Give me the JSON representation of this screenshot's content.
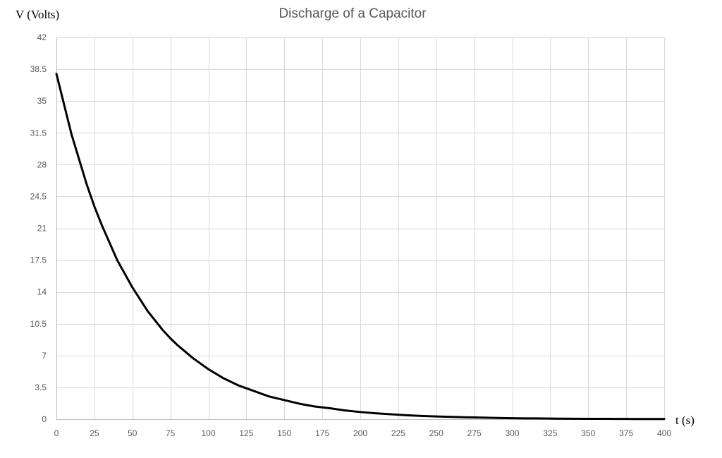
{
  "chart_data": {
    "type": "line",
    "title": "Discharge of a Capacitor",
    "xlabel": "t (s)",
    "ylabel": "V (Volts)",
    "xlim": [
      0,
      400
    ],
    "ylim": [
      0,
      42
    ],
    "x_ticks": [
      0,
      25,
      50,
      75,
      100,
      125,
      150,
      175,
      200,
      225,
      250,
      275,
      300,
      325,
      350,
      375,
      400
    ],
    "y_ticks": [
      0,
      3.5,
      7,
      10.5,
      14,
      17.5,
      21,
      24.5,
      28,
      31.5,
      35,
      38.5,
      42
    ],
    "y_tick_labels": [
      "0",
      "3.5",
      "7",
      "10.5",
      "14",
      "17.5",
      "21",
      "24.5",
      "28",
      "31.5",
      "35",
      "38.5",
      "42"
    ],
    "grid": true,
    "legend": "none",
    "series": [
      {
        "color": "#000000",
        "x": [
          0,
          10,
          20,
          25,
          30,
          40,
          50,
          60,
          70,
          75,
          80,
          90,
          100,
          110,
          120,
          125,
          130,
          140,
          150,
          160,
          170,
          175,
          180,
          190,
          200,
          210,
          220,
          225,
          230,
          240,
          250,
          260,
          270,
          275,
          280,
          290,
          300,
          310,
          320,
          325,
          330,
          340,
          350,
          360,
          370,
          375,
          380,
          390,
          400
        ],
        "y": [
          38,
          31.3,
          25.8,
          23.4,
          21.3,
          17.5,
          14.5,
          11.9,
          9.8,
          8.9,
          8.1,
          6.7,
          5.5,
          4.5,
          3.7,
          3.4,
          3.1,
          2.5,
          2.1,
          1.7,
          1.4,
          1.3,
          1.2,
          0.96,
          0.79,
          0.65,
          0.54,
          0.49,
          0.44,
          0.36,
          0.3,
          0.25,
          0.2,
          0.19,
          0.17,
          0.14,
          0.11,
          0.09,
          0.08,
          0.07,
          0.06,
          0.05,
          0.04,
          0.04,
          0.03,
          0.03,
          0.02,
          0.02,
          0.02
        ]
      }
    ]
  }
}
